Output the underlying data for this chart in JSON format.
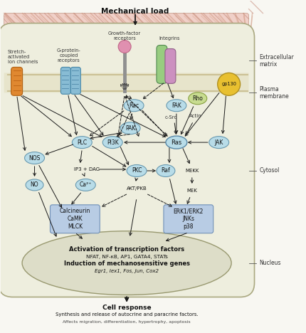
{
  "title": "Mechanical load",
  "bg_color": "#f8f7f2",
  "cell_bg": "#eeede0",
  "nucleus_bg": "#deddc8",
  "extracellular_color": "#f2d8d0",
  "right_labels": [
    [
      "Extracellular\nmatrix",
      85
    ],
    [
      "Plasma\nmembrane",
      130
    ],
    [
      "Cytosol",
      240
    ],
    [
      "Nucleus",
      370
    ]
  ],
  "nucleus_text1": "Activation of transcription factors",
  "nucleus_text2": "NFAT, NF-κB, AP1, GATA4, STATs",
  "nucleus_text3": "Induction of mechanosensitive genes",
  "nucleus_text4": "Egr1, Iex1, Fos, Jun, Cox2",
  "cell_response_text": "Cell response",
  "cell_response_sub": "Synthesis and release of autocrine and paracrine factors."
}
